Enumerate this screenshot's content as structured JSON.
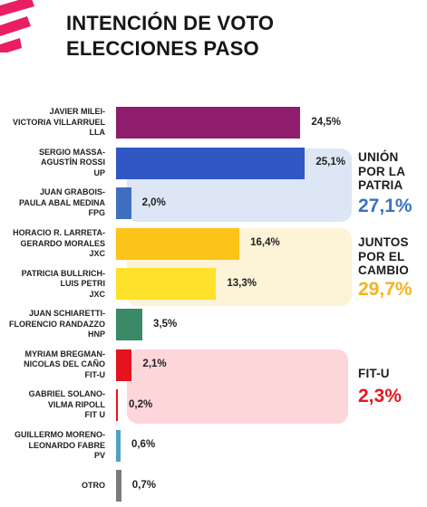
{
  "title": {
    "line1": "INTENCIÓN DE VOTO",
    "line2": "ELECCIONES PASO"
  },
  "colors": {
    "logo": "#e91e63",
    "up_group_bg": "#dce6f4",
    "jxc_group_bg": "#fdf3d6",
    "fitu_group_bg": "#fdd6da"
  },
  "chart_data": {
    "type": "bar",
    "orientation": "horizontal",
    "value_unit": "%",
    "bars": [
      {
        "candidates": [
          "JAVIER MILEI-",
          "VICTORIA VILLARRUEL",
          "LLA"
        ],
        "value": 24.5,
        "label": "24,5%",
        "color": "#8e1d6e"
      },
      {
        "candidates": [
          "SERGIO MASSA-",
          "AGUSTÍN ROSSI",
          "UP"
        ],
        "value": 25.1,
        "label": "25,1%",
        "color": "#3157c4"
      },
      {
        "candidates": [
          "JUAN GRABOIS-",
          "PAULA ABAL MEDINA",
          "FPG"
        ],
        "value": 2.0,
        "label": "2,0%",
        "color": "#3e6fc0"
      },
      {
        "candidates": [
          "HORACIO R. LARRETA-",
          "GERARDO MORALES",
          "JXC"
        ],
        "value": 16.4,
        "label": "16,4%",
        "color": "#fcc318"
      },
      {
        "candidates": [
          "PATRICIA BULLRICH-",
          "LUIS PETRI",
          "JXC"
        ],
        "value": 13.3,
        "label": "13,3%",
        "color": "#fde12a"
      },
      {
        "candidates": [
          "JUAN SCHIARETTI-",
          "FLORENCIO RANDAZZO",
          "HNP"
        ],
        "value": 3.5,
        "label": "3,5%",
        "color": "#3a8a67"
      },
      {
        "candidates": [
          "MYRIAM BREGMAN-",
          "NICOLAS DEL CAÑO",
          "FIT-U"
        ],
        "value": 2.1,
        "label": "2,1%",
        "color": "#e3141d"
      },
      {
        "candidates": [
          "GABRIEL SOLANO-",
          "VILMA RIPOLL",
          "FIT U"
        ],
        "value": 0.2,
        "label": "0,2%",
        "color": "#e3141d"
      },
      {
        "candidates": [
          "GUILLERMO MORENO-",
          "LEONARDO FABRE",
          "PV"
        ],
        "value": 0.6,
        "label": "0,6%",
        "color": "#4ba3c2"
      },
      {
        "candidates": [
          "OTRO"
        ],
        "value": 0.7,
        "label": "0,7%",
        "color": "#7b7b7b"
      }
    ],
    "groups": [
      {
        "name_lines": [
          "UNIÓN",
          "POR LA",
          "PATRIA"
        ],
        "total": 27.1,
        "total_label": "27,1%",
        "color": "#3a73c2",
        "members": [
          1,
          2
        ]
      },
      {
        "name_lines": [
          "JUNTOS",
          "POR EL",
          "CAMBIO"
        ],
        "total": 29.7,
        "total_label": "29,7%",
        "color": "#f2b51d",
        "members": [
          3,
          4
        ]
      },
      {
        "name_lines": [
          "FIT-U"
        ],
        "total": 2.3,
        "total_label": "2,3%",
        "color": "#e11a20",
        "members": [
          6,
          7
        ]
      }
    ]
  }
}
